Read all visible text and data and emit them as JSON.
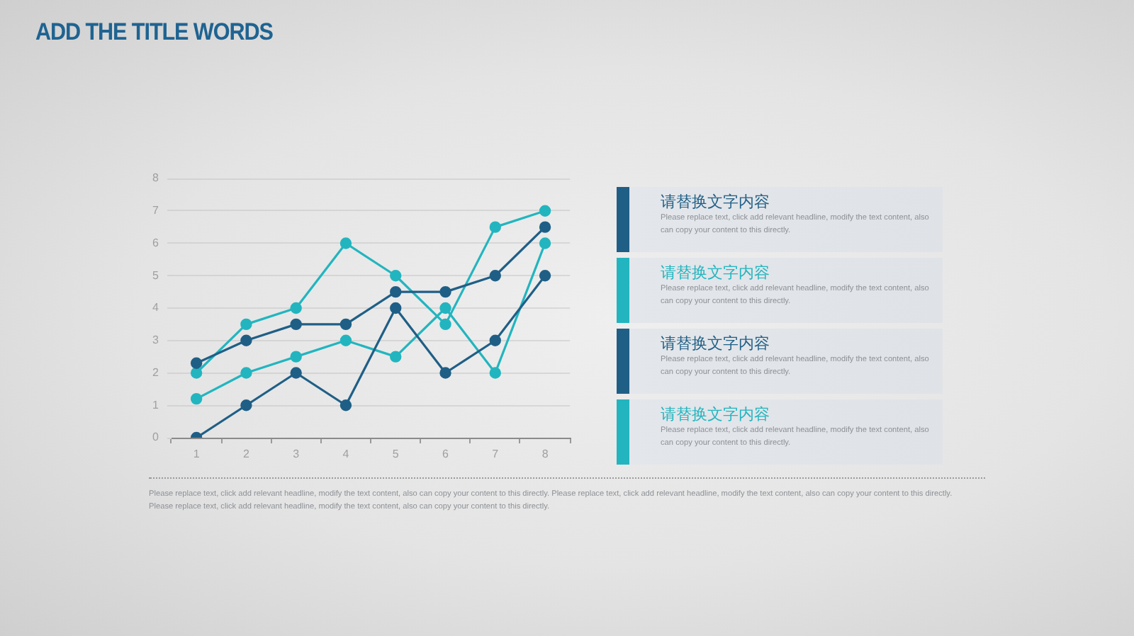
{
  "chart_data": {
    "type": "line",
    "title": "ADD THE TITLE WORDS",
    "categories": [
      "1",
      "2",
      "3",
      "4",
      "5",
      "6",
      "7",
      "8"
    ],
    "series": [
      {
        "color": "#1f5f86",
        "values": [
          2.3,
          3,
          3.5,
          3.5,
          4.5,
          4.5,
          5,
          6.5
        ]
      },
      {
        "color": "#22b5bf",
        "values": [
          2,
          3.5,
          4,
          6,
          5,
          3.5,
          6.5,
          7
        ]
      },
      {
        "color": "#1f5f86",
        "values": [
          0,
          1,
          2,
          1,
          4,
          2,
          3,
          5
        ]
      },
      {
        "color": "#22b5bf",
        "values": [
          1.2,
          2,
          2.5,
          3,
          2.5,
          4,
          2,
          6
        ]
      }
    ],
    "ylim": [
      0,
      8
    ],
    "yticks": [
      0,
      1,
      2,
      3,
      4,
      5,
      6,
      7,
      8
    ],
    "grid": "y",
    "legend": false,
    "marker": "circle",
    "line_style": "solid",
    "annotations": [
      "请替换文字内容",
      "Please replace text, click add relevant headline, modify the text content, also can copy your content to this directly.",
      "请替换文字内容",
      "Please replace text, click add relevant headline, modify the text content, also can copy your content to this directly.",
      "请替换文字内容",
      "Please replace text, click add relevant headline, modify the text content, also can copy your content to this directly.",
      "请替换文字内容",
      "Please replace text, click add relevant headline, modify the text content, also can copy your content to this directly.",
      "Please replace text, click add relevant headline, modify the text content, also can copy your content to this directly. Please replace text, click add relevant headline, modify the text content, also can copy your content to this directly. Please replace text, click add relevant headline, modify the text content, also can copy your content to this directly."
    ]
  }
}
